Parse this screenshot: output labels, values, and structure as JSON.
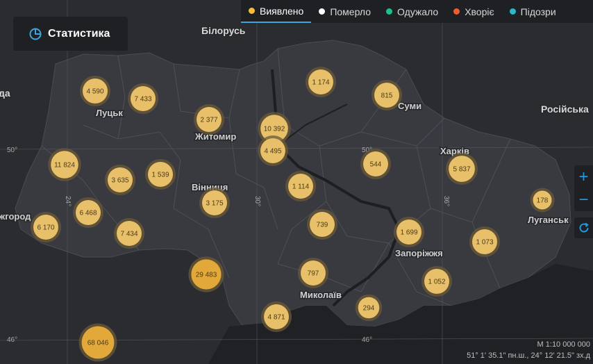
{
  "header": {
    "stats_button_label": "Статистика",
    "legend": [
      {
        "label": "Виявлено",
        "color": "#f6bd3a",
        "active": true
      },
      {
        "label": "Померло",
        "color": "#ffffff",
        "active": false
      },
      {
        "label": "Одужало",
        "color": "#1fbf8a",
        "active": false
      },
      {
        "label": "Хворіє",
        "color": "#f55a2c",
        "active": false
      },
      {
        "label": "Підозри",
        "color": "#2ab7c9",
        "active": false
      }
    ]
  },
  "map": {
    "countries": [
      "Білорусь",
      "Російська",
      "да"
    ],
    "cities": [
      "Луцьк",
      "Житомир",
      "Суми",
      "Харків",
      "Вінниця",
      "жгород",
      "Луганськ",
      "Запоріжжя",
      "Миколаїв"
    ],
    "grid_labels": [
      "50°",
      "50°",
      "50°",
      "24°",
      "30°",
      "36°",
      "46°",
      "46°"
    ],
    "clusters": [
      {
        "value": "4 590",
        "radius_scale": 1
      },
      {
        "value": "7 433",
        "radius_scale": 1
      },
      {
        "value": "2 377",
        "radius_scale": 1
      },
      {
        "value": "10 392",
        "radius_scale": 1.1
      },
      {
        "value": "4 495",
        "radius_scale": 1
      },
      {
        "value": "1 174",
        "radius_scale": 1
      },
      {
        "value": "815",
        "radius_scale": 1
      },
      {
        "value": "11 824",
        "radius_scale": 1.1
      },
      {
        "value": "3 635",
        "radius_scale": 1
      },
      {
        "value": "1 539",
        "radius_scale": 1
      },
      {
        "value": "1 114",
        "radius_scale": 1
      },
      {
        "value": "544",
        "radius_scale": 1
      },
      {
        "value": "5 837",
        "radius_scale": 1.05
      },
      {
        "value": "3 175",
        "radius_scale": 1
      },
      {
        "value": "6 468",
        "radius_scale": 1
      },
      {
        "value": "178",
        "radius_scale": 0.75
      },
      {
        "value": "6 170",
        "radius_scale": 1
      },
      {
        "value": "7 434",
        "radius_scale": 1
      },
      {
        "value": "739",
        "radius_scale": 1
      },
      {
        "value": "1 699",
        "radius_scale": 1
      },
      {
        "value": "1 073",
        "radius_scale": 1
      },
      {
        "value": "29 483",
        "radius_scale": 1.2
      },
      {
        "value": "797",
        "radius_scale": 1
      },
      {
        "value": "1 052",
        "radius_scale": 1
      },
      {
        "value": "294",
        "radius_scale": 0.85
      },
      {
        "value": "4 871",
        "radius_scale": 1
      },
      {
        "value": "68 046",
        "radius_scale": 1.3
      }
    ]
  },
  "controls": {
    "zoom_in": "+",
    "zoom_out": "−"
  },
  "footer": {
    "scale": "M 1:10 000 000",
    "coords": "51° 1' 35.1\" пн.ш., 24° 12' 21.5\" зх.д"
  }
}
